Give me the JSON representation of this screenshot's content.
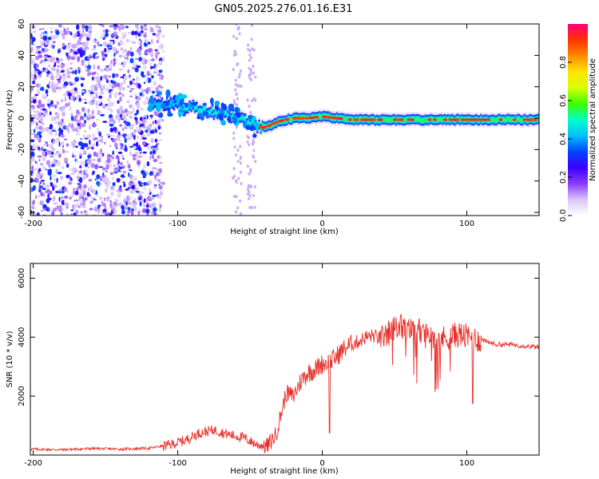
{
  "title": "GN05.2025.276.01.16.E31",
  "chart_data": [
    {
      "type": "heatmap",
      "xlabel": "Height of straight line (km)",
      "ylabel": "Frequency (Hz)",
      "xlim": [
        -202,
        150
      ],
      "ylim": [
        -62,
        60
      ],
      "xticks": [
        -200,
        -100,
        0,
        100
      ],
      "yticks": [
        60,
        40,
        20,
        0,
        -20,
        -40,
        -60
      ],
      "colorbar": {
        "label": "Normalized spectral amplitude",
        "range": [
          0,
          1
        ],
        "ticks": [
          "0.0",
          "0.2",
          "0.4",
          "0.6",
          "0.8"
        ],
        "tick_values": [
          0,
          0.2,
          0.4,
          0.6,
          0.8
        ],
        "colors": [
          "#ffffff",
          "#d9c6f7",
          "#8a3bff",
          "#3b00ff",
          "#0044ff",
          "#00bfff",
          "#00ffc8",
          "#3cff00",
          "#d9ff00",
          "#ffe400",
          "#ff8a00",
          "#ff3300",
          "#ff007a"
        ]
      },
      "ridge_frequency": {
        "x": [
          -115,
          -100,
          -90,
          -80,
          -70,
          -60,
          -50,
          -45,
          -40,
          -35,
          -30,
          -20,
          -10,
          0,
          10,
          20,
          40,
          60,
          80,
          100,
          120,
          150
        ],
        "y": [
          10,
          8,
          7,
          5,
          3,
          1,
          -3,
          -5,
          -6,
          -4,
          -2,
          0,
          0,
          1,
          0,
          -1,
          -1,
          -1,
          -1,
          -1,
          -1,
          -1
        ]
      },
      "noise_region_x": [
        -202,
        -115
      ]
    },
    {
      "type": "line",
      "xlabel": "Height of straight line (km)",
      "ylabel": "SNR (10 * v/v)",
      "xlim": [
        -202,
        150
      ],
      "ylim": [
        0,
        6500
      ],
      "xticks": [
        -200,
        -100,
        0,
        100
      ],
      "yticks": [
        2000,
        4000,
        6000
      ],
      "color": "#e8302a",
      "series": [
        {
          "name": "SNR",
          "x": [
            -202,
            -180,
            -160,
            -140,
            -120,
            -105,
            -95,
            -85,
            -75,
            -65,
            -55,
            -45,
            -38,
            -32,
            -28,
            -25,
            -20,
            -15,
            -10,
            -5,
            0,
            5,
            10,
            15,
            20,
            25,
            30,
            35,
            40,
            45,
            50,
            55,
            60,
            65,
            70,
            75,
            80,
            85,
            90,
            95,
            100,
            110,
            120,
            130,
            140,
            150
          ],
          "y": [
            200,
            180,
            220,
            200,
            230,
            350,
            500,
            750,
            850,
            700,
            600,
            350,
            300,
            700,
            1500,
            2100,
            2000,
            2500,
            2800,
            2900,
            3100,
            3150,
            3350,
            3600,
            3750,
            3850,
            4000,
            4050,
            3950,
            4100,
            4300,
            4350,
            4200,
            4300,
            4050,
            4100,
            4000,
            3950,
            4050,
            4100,
            4000,
            3900,
            3750,
            3750,
            3700,
            3650
          ]
        }
      ]
    }
  ]
}
